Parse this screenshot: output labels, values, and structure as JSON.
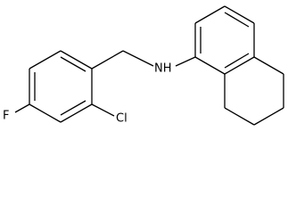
{
  "labels": {
    "fluorine": "F",
    "chlorine": "Cl",
    "amine": "NH"
  }
}
